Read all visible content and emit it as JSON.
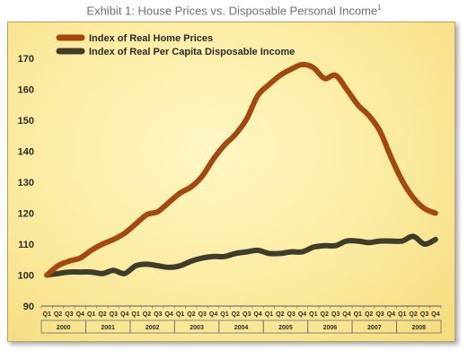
{
  "title": "Exhibit 1: House Prices vs. Disposable Personal Income",
  "title_footnote": "1",
  "chart_data": {
    "type": "line",
    "title": "Exhibit 1: House Prices vs. Disposable Personal Income",
    "xlabel": "",
    "ylabel": "",
    "ylim": [
      90,
      170
    ],
    "yticks": [
      90,
      100,
      110,
      120,
      130,
      140,
      150,
      160,
      170
    ],
    "grid": false,
    "legend_position": "top-left",
    "quarters": [
      "Q1",
      "Q2",
      "Q3",
      "Q4"
    ],
    "years": [
      "2000",
      "2001",
      "2002",
      "2003",
      "2004",
      "2005",
      "2006",
      "2007",
      "2008"
    ],
    "categories": [
      "2000 Q1",
      "2000 Q2",
      "2000 Q3",
      "2000 Q4",
      "2001 Q1",
      "2001 Q2",
      "2001 Q3",
      "2001 Q4",
      "2002 Q1",
      "2002 Q2",
      "2002 Q3",
      "2002 Q4",
      "2003 Q1",
      "2003 Q2",
      "2003 Q3",
      "2003 Q4",
      "2004 Q1",
      "2004 Q2",
      "2004 Q3",
      "2004 Q4",
      "2005 Q1",
      "2005 Q2",
      "2005 Q3",
      "2005 Q4",
      "2006 Q1",
      "2006 Q2",
      "2006 Q3",
      "2006 Q4",
      "2007 Q1",
      "2007 Q2",
      "2007 Q3",
      "2007 Q4",
      "2008 Q1",
      "2008 Q2",
      "2008 Q3",
      "2008 Q4"
    ],
    "series": [
      {
        "name": "Index of Real Home Prices",
        "color": "#a5480f",
        "values": [
          100,
          103,
          104.5,
          105.5,
          108,
          110,
          111.5,
          113.5,
          116.5,
          119.5,
          120.5,
          123.5,
          126.5,
          128.5,
          132,
          137.5,
          142,
          145.5,
          150.5,
          158,
          161.5,
          164.5,
          166.5,
          168,
          167,
          163.5,
          164.5,
          160,
          155,
          151.5,
          146.5,
          138,
          130.5,
          125,
          121.5,
          120
        ]
      },
      {
        "name": "Index of Real Per Capita Disposable Income",
        "color": "#3e3d2b",
        "values": [
          100,
          100.5,
          101,
          101,
          101,
          100.5,
          101.5,
          100.5,
          103,
          103.5,
          103,
          102.5,
          103,
          104.5,
          105.5,
          106,
          106,
          107,
          107.5,
          108,
          107,
          107,
          107.5,
          107.5,
          109,
          109.5,
          109.5,
          111,
          111,
          110.5,
          111,
          111,
          111,
          112.5,
          110,
          111.5
        ]
      }
    ]
  }
}
